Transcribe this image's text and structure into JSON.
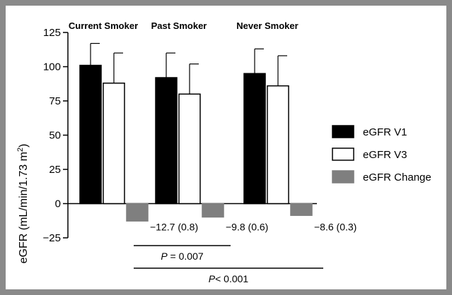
{
  "chart_data": {
    "type": "bar",
    "title": "",
    "xlabel": "",
    "ylabel": "eGFR (mL/min/1.73 m",
    "ylabel_sup": "2",
    "ylabel_close": ")",
    "ylim": [
      -25,
      125
    ],
    "yticks": [
      125,
      100,
      75,
      50,
      25,
      0,
      -25
    ],
    "ytick_labels": [
      "125",
      "100",
      "75",
      "50",
      "25",
      "0",
      "−25"
    ],
    "grid": false,
    "legend_position": "right",
    "categories": [
      "Current Smoker",
      "Past Smoker",
      "Never Smoker"
    ],
    "series": [
      {
        "name": "eGFR V1",
        "color": "#000000",
        "stroke": "#000000",
        "values": [
          101,
          92,
          95
        ],
        "errors": [
          16,
          18,
          18
        ]
      },
      {
        "name": "eGFR V3",
        "color": "#ffffff",
        "stroke": "#000000",
        "values": [
          88,
          80,
          86
        ],
        "errors": [
          22,
          22,
          22
        ]
      },
      {
        "name": "eGFR Change",
        "color": "#7f7f7f",
        "stroke": "#7f7f7f",
        "values": [
          -12.7,
          -9.8,
          -8.6
        ],
        "errors": [
          0.8,
          0.6,
          0.3
        ]
      }
    ],
    "change_labels": [
      "−12.7 (0.8)",
      "−9.8 (0.6)",
      "−8.6 (0.3)"
    ],
    "comparisons": [
      {
        "italic": "P",
        "text": " = 0.007",
        "from_group": 0,
        "to_group": 1
      },
      {
        "italic": "P",
        "text": "< 0.001",
        "from_group": 0,
        "to_group": 2
      }
    ]
  }
}
